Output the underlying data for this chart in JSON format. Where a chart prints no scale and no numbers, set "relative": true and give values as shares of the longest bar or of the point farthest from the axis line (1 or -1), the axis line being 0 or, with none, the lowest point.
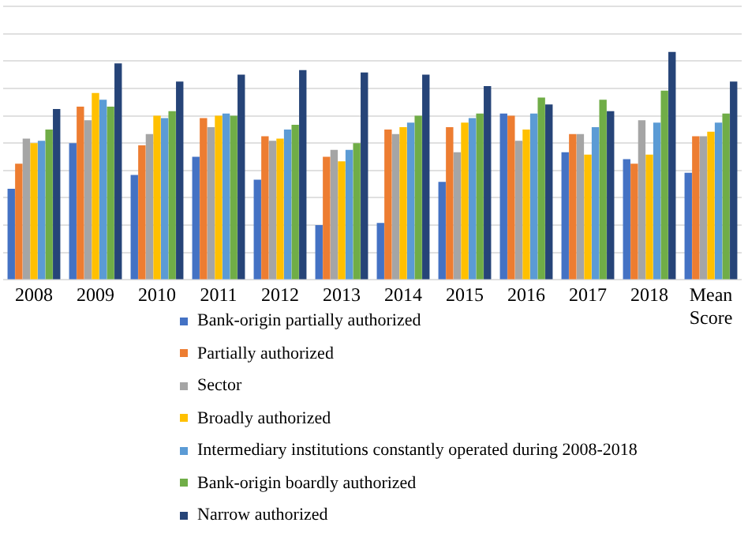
{
  "chart_data": {
    "type": "bar",
    "relative": true,
    "grid": "y",
    "legend": "bottom",
    "categories": [
      "2008",
      "2009",
      "2010",
      "2011",
      "2012",
      "2013",
      "2014",
      "2015",
      "2016",
      "2017",
      "2018",
      "Mean Score"
    ],
    "series": [
      {
        "name": "Bank-origin partially authorized",
        "color": "#4472c4",
        "values": [
          0.4,
          0.6,
          0.46,
          0.54,
          0.44,
          0.24,
          0.25,
          0.43,
          0.73,
          0.56,
          0.53,
          0.47
        ]
      },
      {
        "name": "Partially authorized",
        "color": "#ed7d31",
        "values": [
          0.51,
          0.76,
          0.59,
          0.71,
          0.63,
          0.54,
          0.66,
          0.67,
          0.72,
          0.64,
          0.51,
          0.63
        ]
      },
      {
        "name": "Sector",
        "color": "#a5a5a5",
        "values": [
          0.62,
          0.7,
          0.64,
          0.67,
          0.61,
          0.57,
          0.64,
          0.56,
          0.61,
          0.64,
          0.7,
          0.63
        ]
      },
      {
        "name": "Broadly authorized",
        "color": "#ffc000",
        "values": [
          0.6,
          0.82,
          0.72,
          0.72,
          0.62,
          0.52,
          0.67,
          0.69,
          0.66,
          0.55,
          0.55,
          0.65
        ]
      },
      {
        "name": "Intermediary institutions constantly operated during 2008-2018",
        "color": "#5b9bd5",
        "values": [
          0.61,
          0.79,
          0.71,
          0.73,
          0.66,
          0.57,
          0.69,
          0.71,
          0.73,
          0.67,
          0.69,
          0.69
        ]
      },
      {
        "name": "Bank-origin boardly authorized",
        "color": "#70ad47",
        "values": [
          0.66,
          0.76,
          0.74,
          0.72,
          0.68,
          0.6,
          0.72,
          0.73,
          0.8,
          0.79,
          0.83,
          0.73
        ]
      },
      {
        "name": "Narrow authorized",
        "color": "#264478",
        "values": [
          0.75,
          0.95,
          0.87,
          0.9,
          0.92,
          0.91,
          0.9,
          0.85,
          0.77,
          0.74,
          1,
          0.87
        ]
      }
    ]
  }
}
